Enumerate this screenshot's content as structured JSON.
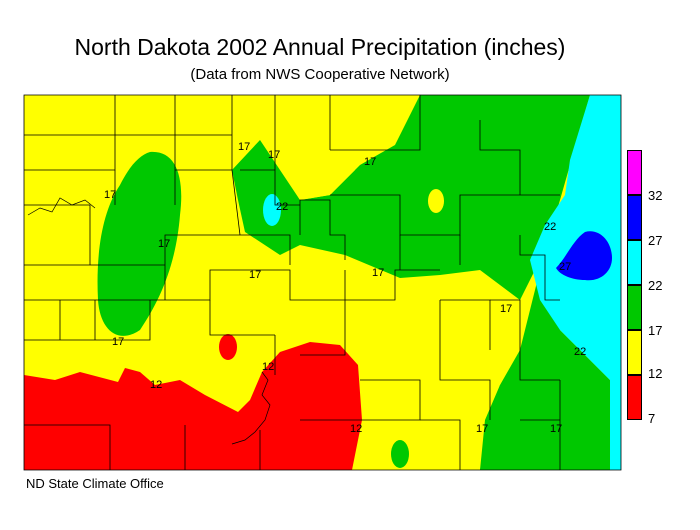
{
  "title": "North Dakota 2002 Annual Precipitation (inches)",
  "subtitle": "(Data from NWS Cooperative Network)",
  "credit": "ND State Climate Office",
  "legend": {
    "bins": [
      {
        "label": "",
        "color": "#ff00ff"
      },
      {
        "label": "32",
        "color": "#0000ff"
      },
      {
        "label": "27",
        "color": "#00ffff"
      },
      {
        "label": "22",
        "color": "#00c800"
      },
      {
        "label": "17",
        "color": "#ffff00"
      },
      {
        "label": "12",
        "color": "#ff0000"
      },
      {
        "label": "7",
        "color": null
      }
    ]
  },
  "isoline_labels": [
    "17",
    "17",
    "17",
    "22",
    "17",
    "17",
    "17",
    "17",
    "17",
    "22",
    "22",
    "27",
    "17",
    "12",
    "12",
    "12",
    "17",
    "17"
  ],
  "colors": {
    "yellow": "#ffff00",
    "green": "#00c800",
    "cyan": "#00ffff",
    "blue": "#0000ff",
    "red": "#ff0000",
    "magenta": "#ff00ff"
  }
}
